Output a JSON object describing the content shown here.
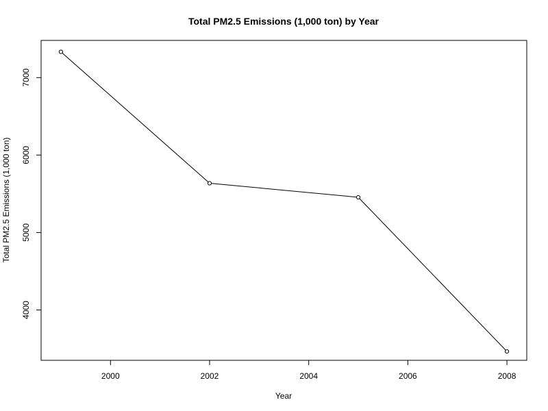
{
  "chart_data": {
    "type": "line",
    "title": "Total PM2.5 Emissions (1,000 ton) by Year",
    "xlabel": "Year",
    "ylabel": "Total PM2.5 Emissions (1,000 ton)",
    "x": [
      1999,
      2002,
      2005,
      2008
    ],
    "series": [
      {
        "values": [
          7332.97,
          5635.78,
          5454.7,
          3464.21
        ]
      }
    ],
    "xlim": [
      1998.6,
      2008.4
    ],
    "ylim": [
      3350,
      7480
    ],
    "xticks": [
      2000,
      2002,
      2004,
      2006,
      2008
    ],
    "yticks": [
      4000,
      5000,
      6000,
      7000
    ],
    "marker": "open-circle",
    "grid": false,
    "legend": "none",
    "colors": {
      "line": "#000000",
      "marker": "#000000",
      "axis": "#000000"
    }
  }
}
